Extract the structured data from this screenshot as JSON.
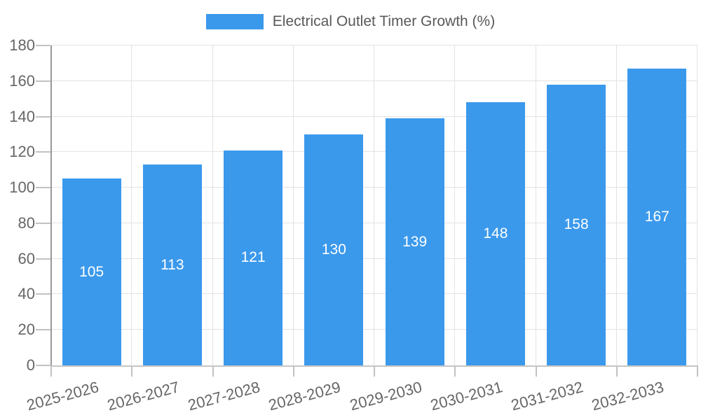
{
  "chart_data": {
    "type": "bar",
    "title": "Electrical Outlet Timer Growth (%)",
    "categories": [
      "2025-2026",
      "2026-2027",
      "2027-2028",
      "2028-2029",
      "2029-2030",
      "2030-2031",
      "2031-2032",
      "2032-2033"
    ],
    "values": [
      105,
      113,
      121,
      130,
      139,
      148,
      158,
      167
    ],
    "xlabel": "",
    "ylabel": "",
    "ylim": [
      0,
      180
    ],
    "yticks": [
      0,
      20,
      40,
      60,
      80,
      100,
      120,
      140,
      160,
      180
    ],
    "grid": true,
    "legend_position": "top",
    "bar_labels_inside": true
  },
  "style": {
    "bar_color": "#3B99EC",
    "value_label_color": "#ffffff",
    "grid_color": "#e3e3e3",
    "y_axis_line_color": "#999999",
    "x_axis_line_color": "#c6c6c6",
    "tick_color": "#c2c2c2",
    "axis_text_color": "#666666",
    "legend_text_color": "#595959",
    "background": "#ffffff"
  }
}
